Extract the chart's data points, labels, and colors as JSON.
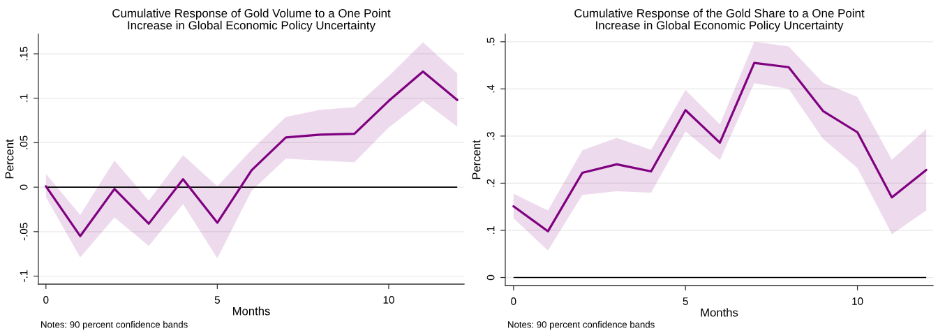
{
  "chart_data": [
    {
      "type": "line",
      "title": "Cumulative Response of Gold Volume to a One Point\nIncrease in Global Economic Policy Uncertainty",
      "xlabel": "Months",
      "ylabel": "Percent",
      "x": [
        0,
        1,
        2,
        3,
        4,
        5,
        6,
        7,
        8,
        9,
        10,
        11,
        12
      ],
      "series": [
        {
          "color": "#800080",
          "values": [
            0.001,
            -0.055,
            -0.002,
            -0.041,
            0.009,
            -0.04,
            0.019,
            0.056,
            0.059,
            0.06,
            0.097,
            0.13,
            0.098
          ],
          "lower": [
            -0.011,
            -0.079,
            -0.034,
            -0.066,
            -0.019,
            -0.08,
            -0.004,
            0.032,
            0.03,
            0.028,
            0.067,
            0.097,
            0.068
          ],
          "upper": [
            0.015,
            -0.031,
            0.03,
            -0.015,
            0.036,
            0.001,
            0.042,
            0.079,
            0.087,
            0.09,
            0.125,
            0.163,
            0.128
          ]
        }
      ],
      "xlim": [
        -0.22,
        12.2
      ],
      "xticks": [
        0,
        5,
        10
      ],
      "ylim": [
        -0.109,
        0.172
      ],
      "yticks": [
        {
          "value": -0.1,
          "label": "-.1"
        },
        {
          "value": -0.05,
          "label": "-.05"
        },
        0,
        {
          "value": 0.05,
          "label": ".05"
        },
        {
          "value": 0.1,
          "label": ".1"
        },
        {
          "value": 0.15,
          "label": ".15"
        }
      ],
      "ref_lines": [
        {
          "axis": "y",
          "value": 0,
          "color": "#000000"
        }
      ],
      "grid": "y",
      "line_style": "solid",
      "annotations": [
        "Notes: 90 percent confidence bands"
      ]
    },
    {
      "type": "line",
      "title": "Cumulative Response of the Gold Share to a One Point\nIncrease in Global Economic Policy Uncertainty",
      "xlabel": "Months",
      "ylabel": "Percent",
      "x": [
        0,
        1,
        2,
        3,
        4,
        5,
        6,
        7,
        8,
        9,
        10,
        11,
        12
      ],
      "series": [
        {
          "color": "#800080",
          "values": [
            0.151,
            0.098,
            0.222,
            0.24,
            0.225,
            0.355,
            0.286,
            0.455,
            0.446,
            0.353,
            0.308,
            0.17,
            0.228
          ],
          "lower": [
            0.126,
            0.057,
            0.175,
            0.183,
            0.18,
            0.31,
            0.249,
            0.412,
            0.4,
            0.294,
            0.232,
            0.092,
            0.142
          ],
          "upper": [
            0.178,
            0.142,
            0.27,
            0.296,
            0.271,
            0.398,
            0.325,
            0.5,
            0.49,
            0.413,
            0.383,
            0.25,
            0.315
          ]
        }
      ],
      "xlim": [
        -0.24,
        12.2
      ],
      "xticks": [
        0,
        5,
        10
      ],
      "ylim": [
        -0.017,
        0.516
      ],
      "yticks": [
        0,
        {
          "value": 0.1,
          "label": ".1"
        },
        {
          "value": 0.2,
          "label": ".2"
        },
        {
          "value": 0.3,
          "label": ".3"
        },
        {
          "value": 0.4,
          "label": ".4"
        },
        {
          "value": 0.5,
          "label": ".5"
        }
      ],
      "ref_lines": [
        {
          "axis": "y",
          "value": 0,
          "color": "#000000"
        }
      ],
      "grid": "y",
      "line_style": "solid",
      "annotations": [
        "Notes: 90 percent confidence bands"
      ]
    }
  ]
}
